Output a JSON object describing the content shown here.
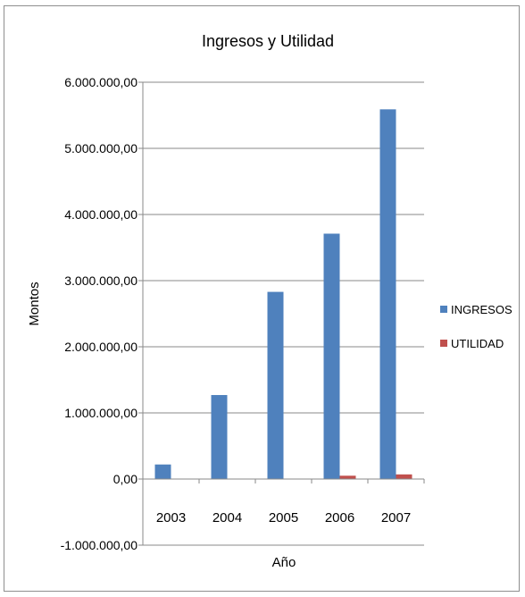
{
  "chart_data": {
    "type": "bar",
    "title": "Ingresos y Utilidad",
    "xlabel": "Año",
    "ylabel": "Montos",
    "categories": [
      "2003",
      "2004",
      "2005",
      "2006",
      "2007"
    ],
    "series": [
      {
        "name": "INGRESOS",
        "color": "#4f81bd",
        "values": [
          220000,
          1270000,
          2830000,
          3710000,
          5590000
        ]
      },
      {
        "name": "UTILIDAD",
        "color": "#c0504d",
        "values": [
          0,
          0,
          0,
          50000,
          70000
        ]
      }
    ],
    "ylim": [
      -1000000,
      6000000
    ],
    "yticks": [
      6000000,
      5000000,
      4000000,
      3000000,
      2000000,
      1000000,
      0,
      -1000000
    ],
    "ytick_labels": [
      "6.000.000,00",
      "5.000.000,00",
      "4.000.000,00",
      "3.000.000,00",
      "2.000.000,00",
      "1.000.000,00",
      "0,00",
      "-1.000.000,00"
    ],
    "grid": true,
    "legend_position": "right"
  }
}
